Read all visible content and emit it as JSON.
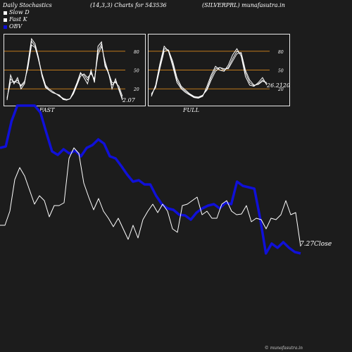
{
  "header": {
    "left": "Daily Stochastics",
    "middle": "(14,3,3) Charts for 543536",
    "right": "(SILVERPRL) munafasutra.in"
  },
  "legend": {
    "items": [
      {
        "label": "Slow  D",
        "color": "#ffffff"
      },
      {
        "label": "Fast K",
        "color": "#ffffff"
      },
      {
        "label": "OBV",
        "color": "#1010d8"
      }
    ]
  },
  "panels": {
    "fast_label": "FAST",
    "full_label": "FULL",
    "fast_value": "2.07",
    "full_value": "26.21",
    "full_value_suffix": "20",
    "levels": [
      "80",
      "50",
      "20"
    ]
  },
  "price": {
    "last_label": "7.27",
    "close_label": "Close"
  },
  "footer": "© munafasutra.in",
  "chart_data": [
    {
      "type": "line",
      "title": "FAST",
      "ylim": [
        0,
        100
      ],
      "reference_lines": [
        80,
        50,
        20
      ],
      "series": [
        {
          "values": [
            2,
            42,
            28,
            38,
            20,
            28,
            62,
            100,
            92,
            70,
            40,
            22,
            18,
            14,
            12,
            10,
            3,
            2,
            4,
            16,
            30,
            46,
            38,
            28,
            50,
            30,
            88,
            95,
            56,
            46,
            20,
            36,
            18,
            2
          ]
        },
        {
          "values": [
            4,
            36,
            30,
            34,
            24,
            30,
            58,
            96,
            88,
            66,
            42,
            24,
            18,
            14,
            12,
            8,
            4,
            2,
            4,
            14,
            28,
            44,
            42,
            34,
            46,
            34,
            80,
            92,
            60,
            44,
            26,
            32,
            20,
            4
          ]
        },
        {
          "values": [
            6,
            30,
            32,
            30,
            26,
            32,
            54,
            90,
            86,
            68,
            44,
            26,
            20,
            16,
            12,
            9,
            5,
            3,
            4,
            12,
            26,
            40,
            44,
            38,
            44,
            36,
            74,
            88,
            64,
            46,
            30,
            30,
            24,
            8
          ]
        }
      ]
    },
    {
      "type": "line",
      "title": "FULL",
      "ylim": [
        0,
        100
      ],
      "reference_lines": [
        80,
        50,
        20
      ],
      "series": [
        {
          "values": [
            8,
            26,
            60,
            88,
            80,
            56,
            30,
            20,
            14,
            10,
            6,
            5,
            8,
            24,
            42,
            56,
            50,
            48,
            58,
            74,
            84,
            72,
            40,
            26,
            24,
            30,
            38,
            26
          ]
        },
        {
          "values": [
            10,
            24,
            56,
            84,
            82,
            60,
            34,
            22,
            16,
            11,
            7,
            6,
            9,
            20,
            38,
            52,
            54,
            50,
            54,
            68,
            80,
            76,
            46,
            30,
            25,
            28,
            34,
            28
          ]
        },
        {
          "values": [
            12,
            22,
            52,
            80,
            82,
            64,
            38,
            24,
            18,
            12,
            8,
            7,
            10,
            18,
            34,
            48,
            54,
            52,
            52,
            64,
            76,
            78,
            50,
            34,
            26,
            27,
            32,
            30
          ]
        }
      ]
    },
    {
      "type": "line",
      "series": [
        {
          "name": "OBV",
          "values": [
            210,
            208,
            172,
            150,
            150,
            150,
            150,
            160,
            188,
            215,
            220,
            212,
            218,
            214,
            222,
            210,
            206,
            198,
            204,
            222,
            225,
            236,
            248,
            258,
            256,
            262,
            262,
            278,
            290,
            296,
            298,
            305,
            306,
            312,
            302,
            296,
            292,
            290,
            296,
            288,
            290,
            258,
            264,
            266,
            268,
            310,
            360,
            346,
            352,
            344,
            352,
            358,
            360
          ]
        },
        {
          "name": "Close",
          "values": [
            320,
            320,
            300,
            255,
            238,
            250,
            270,
            290,
            278,
            285,
            308,
            292,
            292,
            288,
            225,
            210,
            218,
            260,
            280,
            298,
            282,
            300,
            310,
            322,
            310,
            325,
            340,
            320,
            338,
            312,
            300,
            290,
            302,
            290,
            300,
            325,
            330,
            292,
            290,
            285,
            280,
            305,
            300,
            310,
            310,
            290,
            285,
            300,
            305,
            304,
            292,
            315,
            310,
            312,
            325,
            310,
            312,
            305,
            285,
            305,
            302,
            350
          ]
        }
      ]
    }
  ]
}
